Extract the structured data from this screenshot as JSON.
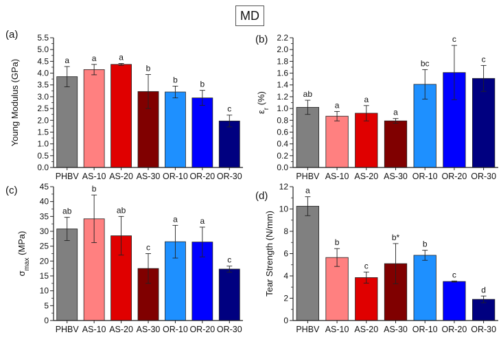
{
  "figure_label": "MD",
  "colors": {
    "PHBV": "#808080",
    "AS-10": "#ff8080",
    "AS-20": "#e00000",
    "AS-30": "#800000",
    "OR-10": "#1e90ff",
    "OR-20": "#0000ff",
    "OR-30": "#000080"
  },
  "chart_data": [
    {
      "type": "bar",
      "panel": "(a)",
      "ylabel": "Young Modulus (GPa)",
      "ylabel_main": "Young Modulus (GPa)",
      "ylabel_sub": "",
      "ylabel_tail": "",
      "categories": [
        "PHBV",
        "AS-10",
        "AS-20",
        "AS-30",
        "OR-10",
        "OR-20",
        "OR-30"
      ],
      "values": [
        3.85,
        4.15,
        4.37,
        3.22,
        3.2,
        2.95,
        1.97
      ],
      "errors": [
        0.43,
        0.22,
        0.04,
        0.72,
        0.25,
        0.32,
        0.25
      ],
      "significance": [
        "a",
        "a",
        "a",
        "b",
        "b",
        "b",
        "c"
      ],
      "ylim": [
        0,
        5.5
      ],
      "yticks": [
        0,
        0.5,
        1,
        1.5,
        2,
        2.5,
        3,
        3.5,
        4,
        4.5,
        5,
        5.5
      ],
      "ytick_labels": [
        "0.0",
        "0.5",
        "1.0",
        "1.5",
        "2.0",
        "2.5",
        "3.0",
        "3.5",
        "4.0",
        "4.5",
        "5.0",
        "5.5"
      ]
    },
    {
      "type": "bar",
      "panel": "(b)",
      "ylabel": "εr (%)",
      "ylabel_main": "ε",
      "ylabel_sub": "r",
      "ylabel_tail": " (%)",
      "categories": [
        "PHBV",
        "AS-10",
        "AS-20",
        "AS-30",
        "OR-10",
        "OR-20",
        "OR-30"
      ],
      "values": [
        1.02,
        0.87,
        0.92,
        0.79,
        1.41,
        1.61,
        1.51
      ],
      "errors": [
        0.12,
        0.08,
        0.13,
        0.04,
        0.25,
        0.46,
        0.22
      ],
      "significance": [
        "ab",
        "a",
        "a",
        "a",
        "bc",
        "c",
        "c"
      ],
      "ylim": [
        0,
        2.2
      ],
      "yticks": [
        0,
        0.2,
        0.4,
        0.6,
        0.8,
        1.0,
        1.2,
        1.4,
        1.6,
        1.8,
        2.0,
        2.2
      ],
      "ytick_labels": [
        "0.0",
        "0.2",
        "0.4",
        "0.6",
        "0.8",
        "1.0",
        "1.2",
        "1.4",
        "1.6",
        "1.8",
        "2.0",
        "2.2"
      ]
    },
    {
      "type": "bar",
      "panel": "(c)",
      "ylabel": "σmax (MPa)",
      "ylabel_main": "σ",
      "ylabel_sub": "max",
      "ylabel_tail": " (MPa)",
      "categories": [
        "PHBV",
        "AS-10",
        "AS-20",
        "AS-30",
        "OR-10",
        "OR-20",
        "OR-30"
      ],
      "values": [
        30.8,
        34.2,
        28.5,
        17.5,
        26.5,
        26.4,
        17.3
      ],
      "errors": [
        3.9,
        8.0,
        6.5,
        5.0,
        5.5,
        5.0,
        1.0
      ],
      "significance": [
        "ab",
        "b",
        "ab",
        "c",
        "a",
        "a",
        "c"
      ],
      "ylim": [
        0,
        45
      ],
      "yticks": [
        0,
        5,
        10,
        15,
        20,
        25,
        30,
        35,
        40,
        45
      ],
      "ytick_labels": [
        "0",
        "5",
        "10",
        "15",
        "20",
        "25",
        "30",
        "35",
        "40",
        "45"
      ]
    },
    {
      "type": "bar",
      "panel": "(d)",
      "ylabel": "Tear Strength (N/mm)",
      "ylabel_main": "Tear Strength (N/mm)",
      "ylabel_sub": "",
      "ylabel_tail": "",
      "categories": [
        "PHBV",
        "AS-10",
        "AS-20",
        "AS-30",
        "OR-10",
        "OR-20",
        "OR-30"
      ],
      "values": [
        10.25,
        5.65,
        3.85,
        5.1,
        5.85,
        3.5,
        1.9
      ],
      "errors": [
        0.85,
        0.8,
        0.5,
        1.8,
        0.45,
        0.05,
        0.3
      ],
      "significance": [
        "a",
        "b",
        "c",
        "b*",
        "b",
        "c",
        "d"
      ],
      "ylim": [
        0,
        12
      ],
      "yticks": [
        0,
        2,
        4,
        6,
        8,
        10,
        12
      ],
      "ytick_labels": [
        "0",
        "2",
        "4",
        "6",
        "8",
        "10",
        "12"
      ]
    }
  ]
}
